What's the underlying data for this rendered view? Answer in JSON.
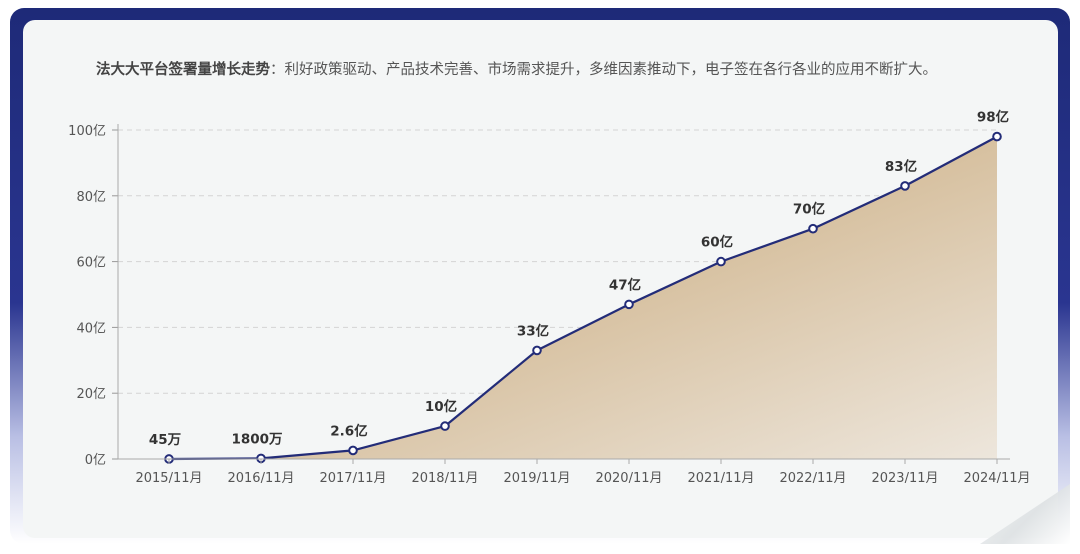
{
  "heading": {
    "title": "法大大平台签署量增长走势",
    "separator": "：",
    "text": "利好政策驱动、产品技术完善、市场需求提升，多维因素推动下，电子签在各行各业的应用不断扩大。"
  },
  "colors": {
    "line": "#232c78",
    "area_top": "#c09a62",
    "area_bottom": "#ede6dc",
    "grid": "#d4d4d4",
    "axis_text": "#555555",
    "label_text": "#333333",
    "frame": "#1e2a78"
  },
  "chart_data": {
    "type": "area",
    "x": [
      "2015/11月",
      "2016/11月",
      "2017/11月",
      "2018/11月",
      "2019/11月",
      "2020/11月",
      "2021/11月",
      "2022/11月",
      "2023/11月",
      "2024/11月"
    ],
    "values_in_yi": [
      0.0045,
      0.18,
      2.6,
      10,
      33,
      47,
      60,
      70,
      83,
      98
    ],
    "data_labels": [
      "45万",
      "1800万",
      "2.6亿",
      "10亿",
      "33亿",
      "47亿",
      "60亿",
      "70亿",
      "83亿",
      "98亿"
    ],
    "y_ticks": [
      "0亿",
      "20亿",
      "40亿",
      "60亿",
      "80亿",
      "100亿"
    ],
    "y_tick_values": [
      0,
      20,
      40,
      60,
      80,
      100
    ],
    "ylim": [
      0,
      100
    ],
    "grid": true,
    "grid_style": "dashed",
    "legend": "none"
  }
}
